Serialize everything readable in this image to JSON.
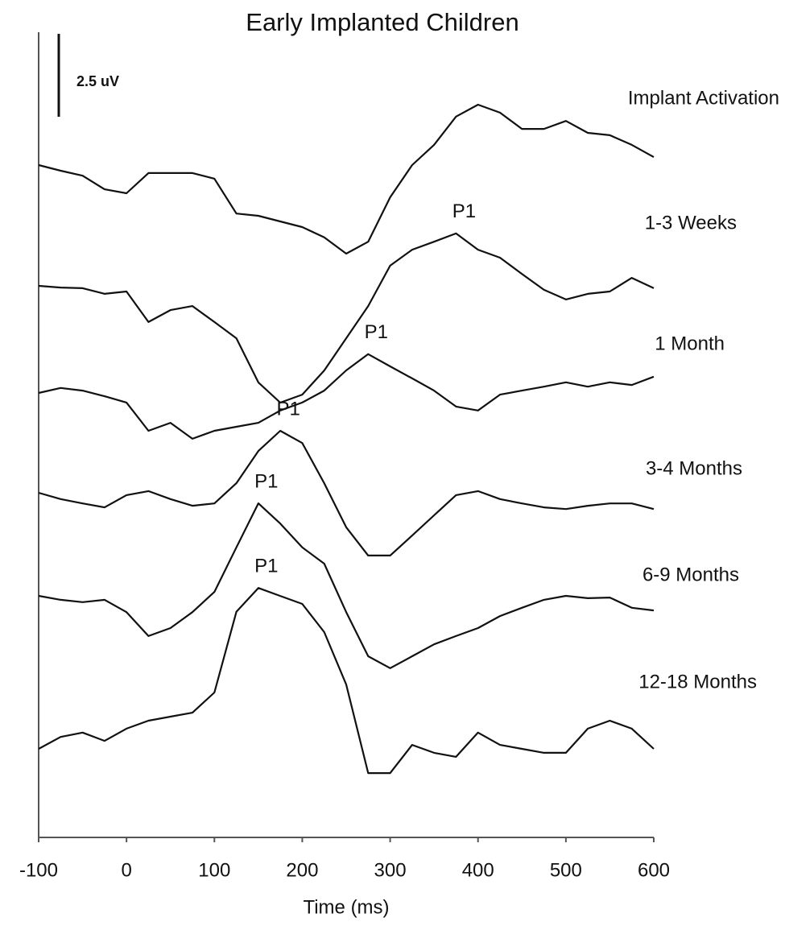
{
  "chart_data": {
    "type": "line",
    "title": "Early Implanted Children",
    "xlabel": "Time (ms)",
    "xlim": [
      -100,
      600
    ],
    "xticks": [
      -100,
      0,
      100,
      200,
      300,
      400,
      500,
      600
    ],
    "scale_bar": {
      "value": 2.5,
      "label": "2.5 uV"
    },
    "color": "#111111",
    "x": [
      -100,
      -75,
      -50,
      -25,
      0,
      25,
      50,
      75,
      100,
      125,
      150,
      175,
      200,
      225,
      250,
      275,
      300,
      325,
      350,
      375,
      400,
      425,
      450,
      475,
      500,
      525,
      550,
      575,
      600
    ],
    "series": [
      {
        "name": "Implant Activation",
        "values": [
          0,
          -0.17,
          -0.32,
          -0.73,
          -0.85,
          -0.24,
          -0.24,
          -0.24,
          -0.41,
          -1.46,
          -1.53,
          -1.7,
          -1.87,
          -2.18,
          -2.67,
          -2.31,
          -0.97,
          0,
          0.61,
          1.46,
          1.82,
          1.58,
          1.09,
          1.09,
          1.33,
          0.97,
          0.9,
          0.61,
          0.24
        ]
      },
      {
        "name": "1-3 Weeks",
        "annotation": "P1",
        "values": [
          0,
          -0.05,
          -0.07,
          -0.24,
          -0.17,
          -1.09,
          -0.73,
          -0.61,
          -1.09,
          -1.58,
          -2.91,
          -3.52,
          -3.28,
          -2.55,
          -1.58,
          -0.61,
          0.61,
          1.09,
          1.33,
          1.58,
          1.09,
          0.85,
          0.36,
          -0.12,
          -0.41,
          -0.24,
          -0.17,
          0.24,
          -0.07
        ]
      },
      {
        "name": "1 Month",
        "annotation": "P1",
        "values": [
          0,
          0.15,
          0.07,
          -0.1,
          -0.29,
          -1.14,
          -0.9,
          -1.38,
          -1.14,
          -1.02,
          -0.9,
          -0.53,
          -0.29,
          0.07,
          0.68,
          1.17,
          0.8,
          0.44,
          0.07,
          -0.41,
          -0.53,
          -0.05,
          0.07,
          0.19,
          0.32,
          0.19,
          0.32,
          0.24,
          0.49
        ]
      },
      {
        "name": "3-4 Months",
        "annotation": "P1",
        "values": [
          0,
          -0.19,
          -0.32,
          -0.44,
          -0.07,
          0.05,
          -0.19,
          -0.39,
          -0.32,
          0.29,
          1.26,
          1.87,
          1.5,
          0.29,
          -1.04,
          -1.89,
          -1.89,
          -1.29,
          -0.68,
          -0.07,
          0.05,
          -0.19,
          -0.32,
          -0.44,
          -0.49,
          -0.39,
          -0.32,
          -0.32,
          -0.49
        ]
      },
      {
        "name": "6-9 Months",
        "annotation": "P1",
        "values": [
          0,
          -0.12,
          -0.19,
          -0.12,
          -0.49,
          -1.21,
          -0.97,
          -0.49,
          0.12,
          1.46,
          2.79,
          2.18,
          1.46,
          0.97,
          -0.49,
          -1.82,
          -2.18,
          -1.82,
          -1.46,
          -1.21,
          -0.97,
          -0.61,
          -0.36,
          -0.12,
          0,
          -0.07,
          -0.05,
          -0.36,
          -0.44
        ]
      },
      {
        "name": "12-18 Months",
        "annotation": "P1",
        "values": [
          0,
          0.36,
          0.49,
          0.24,
          0.61,
          0.85,
          0.97,
          1.09,
          1.7,
          4.13,
          4.85,
          4.61,
          4.37,
          3.52,
          1.94,
          -0.73,
          -0.73,
          0.12,
          -0.12,
          -0.24,
          0.49,
          0.12,
          0,
          -0.12,
          -0.12,
          0.61,
          0.85,
          0.61,
          0
        ]
      }
    ]
  }
}
